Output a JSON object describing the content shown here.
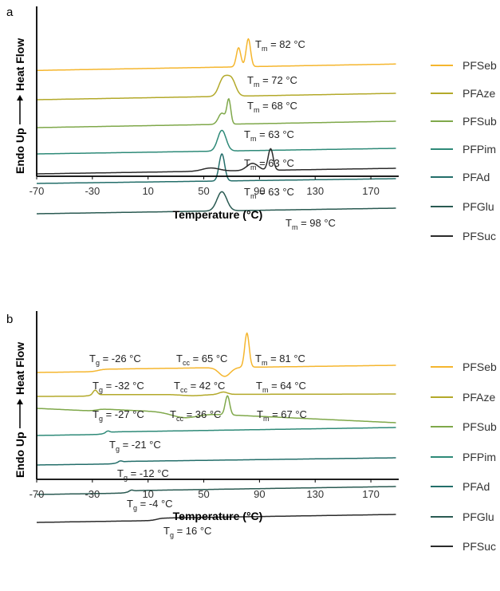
{
  "chart_data": [
    {
      "panel": "a",
      "type": "line",
      "xlabel": "Temperature (°C)",
      "ylabel_parts": [
        "Endo Up",
        "Heat  Flow"
      ],
      "xlim": [
        -70,
        190
      ],
      "xticks": [
        "-70",
        "-30",
        "10",
        "50",
        "90",
        "130",
        "170"
      ],
      "yticks": false,
      "legend_position": "right",
      "series": [
        {
          "name": "PFSeb",
          "color": "#F5B62E"
        },
        {
          "name": "PFAze",
          "color": "#B3A92A"
        },
        {
          "name": "PFSub",
          "color": "#7FA84A"
        },
        {
          "name": "PFPim",
          "color": "#2E8A78"
        },
        {
          "name": "PFAd",
          "color": "#236E6A"
        },
        {
          "name": "PFGlu",
          "color": "#2A5A52"
        },
        {
          "name": "PFSuc",
          "color": "#2B2B2B"
        }
      ],
      "annotations": [
        {
          "series": "PFSeb",
          "symbol": "T",
          "sub": "m",
          "text": " = 82 °C",
          "x_value": 82
        },
        {
          "series": "PFAze",
          "symbol": "T",
          "sub": "m",
          "text": " = 72 °C",
          "x_value": 72
        },
        {
          "series": "PFSub",
          "symbol": "T",
          "sub": "m",
          "text": " = 68 °C",
          "x_value": 68
        },
        {
          "series": "PFPim",
          "symbol": "T",
          "sub": "m",
          "text": " = 63 °C",
          "x_value": 63
        },
        {
          "series": "PFAd",
          "symbol": "T",
          "sub": "m",
          "text": " = 63 °C",
          "x_value": 63
        },
        {
          "series": "PFGlu",
          "symbol": "T",
          "sub": "m",
          "text": " = 63 °C",
          "x_value": 63
        },
        {
          "series": "PFSuc",
          "symbol": "T",
          "sub": "m",
          "text": " = 98 °C",
          "x_value": 98
        }
      ]
    },
    {
      "panel": "b",
      "type": "line",
      "xlabel": "Temperature (°C)",
      "ylabel_parts": [
        "Endo Up",
        "Heat  Flow"
      ],
      "xlim": [
        -70,
        190
      ],
      "xticks": [
        "-70",
        "-30",
        "10",
        "50",
        "90",
        "130",
        "170"
      ],
      "yticks": false,
      "legend_position": "right",
      "series": [
        {
          "name": "PFSeb",
          "color": "#F5B62E"
        },
        {
          "name": "PFAze",
          "color": "#B3A92A"
        },
        {
          "name": "PFSub",
          "color": "#7FA84A"
        },
        {
          "name": "PFPim",
          "color": "#2E8A78"
        },
        {
          "name": "PFAd",
          "color": "#236E6A"
        },
        {
          "name": "PFGlu",
          "color": "#2A5A52"
        },
        {
          "name": "PFSuc",
          "color": "#2B2B2B"
        }
      ],
      "annotations": [
        {
          "series": "PFSeb",
          "symbol": "T",
          "sub": "g",
          "text": " = -26 °C",
          "x_value": -26
        },
        {
          "series": "PFSeb",
          "symbol": "T",
          "sub": "cc",
          "text": " = 65 °C",
          "x_value": 65
        },
        {
          "series": "PFSeb",
          "symbol": "T",
          "sub": "m",
          "text": " = 81 °C",
          "x_value": 81
        },
        {
          "series": "PFAze",
          "symbol": "T",
          "sub": "g",
          "text": " = -32 °C",
          "x_value": -32
        },
        {
          "series": "PFAze",
          "symbol": "T",
          "sub": "cc",
          "text": " = 42 °C",
          "x_value": 42
        },
        {
          "series": "PFAze",
          "symbol": "T",
          "sub": "m",
          "text": " = 64 °C",
          "x_value": 64
        },
        {
          "series": "PFSub",
          "symbol": "T",
          "sub": "g",
          "text": " = -27 °C",
          "x_value": -27
        },
        {
          "series": "PFSub",
          "symbol": "T",
          "sub": "cc",
          "text": " = 36 °C",
          "x_value": 36
        },
        {
          "series": "PFSub",
          "symbol": "T",
          "sub": "m",
          "text": " = 67 °C",
          "x_value": 67
        },
        {
          "series": "PFPim",
          "symbol": "T",
          "sub": "g",
          "text": " = -21 °C",
          "x_value": -21
        },
        {
          "series": "PFAd",
          "symbol": "T",
          "sub": "g",
          "text": " = -12 °C",
          "x_value": -12
        },
        {
          "series": "PFGlu",
          "symbol": "T",
          "sub": "g",
          "text": " = -4 °C",
          "x_value": -4
        },
        {
          "series": "PFSuc",
          "symbol": "T",
          "sub": "g",
          "text": " = 16 °C",
          "x_value": 16
        }
      ]
    }
  ]
}
